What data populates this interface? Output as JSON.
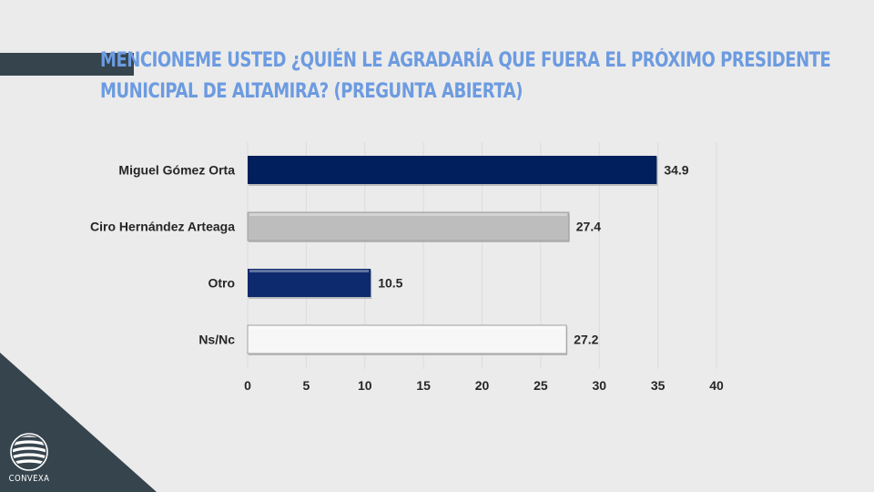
{
  "title": {
    "line1": "Mencioneme usted ¿quién le agradaría que fuera el próximo presidente",
    "line2": "municipal de Altamira? (pregunta abierta)"
  },
  "brand": {
    "name": "CONVEXA",
    "logo_icon": "globe-icon",
    "dark_color": "#36444d",
    "title_color": "#6c9be0"
  },
  "chart_data": {
    "type": "bar",
    "orientation": "horizontal",
    "title": "Mencioneme usted ¿quién le agradaría que fuera el próximo presidente municipal de Altamira? (pregunta abierta)",
    "categories": [
      "Miguel Gómez Orta",
      "Ciro Hernández Arteaga",
      "Otro",
      "Ns/Nc"
    ],
    "values": [
      34.9,
      27.4,
      10.5,
      27.2
    ],
    "value_labels": [
      "34.9",
      "27.4",
      "10.5",
      "27.2"
    ],
    "colors": [
      "#001f5c",
      "#bdbdbd",
      "#0d2a6e",
      "#f7f7f7"
    ],
    "xlim": [
      0,
      40
    ],
    "xticks": [
      0,
      5,
      10,
      15,
      20,
      25,
      30,
      35,
      40
    ],
    "xtick_labels": [
      "0",
      "5",
      "10",
      "15",
      "20",
      "25",
      "30",
      "35",
      "40"
    ],
    "xlabel": "",
    "ylabel": "",
    "grid": true,
    "legend": "none"
  }
}
